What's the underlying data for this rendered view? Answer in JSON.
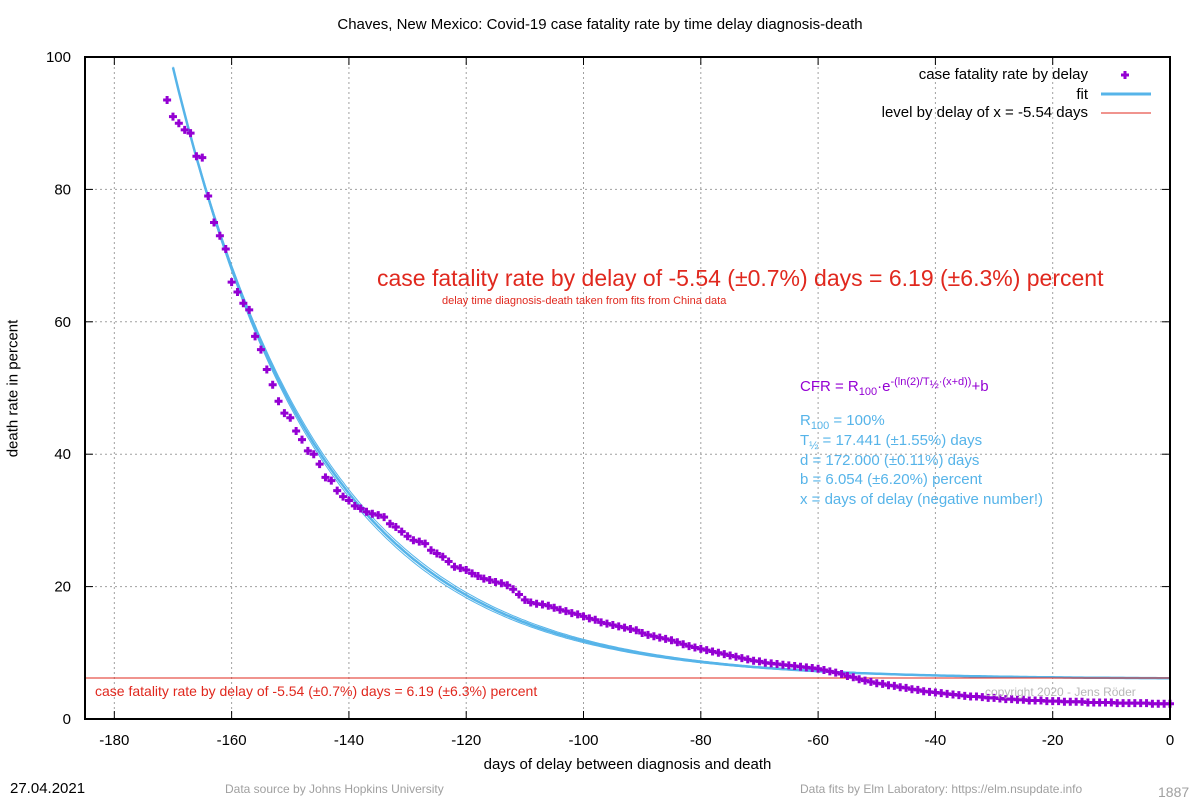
{
  "page": {
    "title": "Chaves,  New Mexico: Covid-19 case fatality rate by time delay diagnosis-death",
    "date": "27.04.2021",
    "data_source": "Data source by Johns Hopkins University",
    "data_fits": "Data fits by Elm Laboratory: https://elm.nsupdate.info",
    "image_number": "1887",
    "copyright": "copyright 2020 - Jens Röder"
  },
  "legend": {
    "points": "case fatality rate by delay",
    "fit": "fit",
    "level": "level by delay of x = -5.54 days"
  },
  "annotations": {
    "main": "case fatality rate by delay of -5.54 (±0.7%) days = 6.19 (±6.3%) percent",
    "sub": "delay time diagnosis-death taken from fits from China data",
    "level_label": "case fatality rate by delay of -5.54 (±0.7%) days = 6.19 (±6.3%) percent"
  },
  "formula": {
    "lhs": "CFR = R",
    "r_sub": "100",
    "dot_e": "·e",
    "exp_a": "-(ln(2)/T",
    "exp_half": "½",
    "exp_b": "·(x+d))",
    "tail": "+b"
  },
  "params": {
    "r100_a": "R",
    "r100_sub": "100",
    "r100_b": " = 100%",
    "t_a": "T",
    "t_sub": "½",
    "t_b": " = 17.441 (±1.55%) days",
    "d": "d = 172.000 (±0.11%) days",
    "b": "b = 6.054 (±6.20%) percent",
    "x": "x = days of delay (negative number!)"
  },
  "colors": {
    "points": "#9400d3",
    "fit": "#56b4e9",
    "level": "#e0281e",
    "grid": "#a0a0a0"
  },
  "chart_data": {
    "type": "scatter",
    "title": "Chaves,  New Mexico: Covid-19 case fatality rate by time delay diagnosis-death",
    "xlabel": "days of delay between diagnosis and death",
    "ylabel": "death rate in percent",
    "xlim": [
      -185,
      0
    ],
    "ylim": [
      0,
      100
    ],
    "x_ticks": [
      -180,
      -160,
      -140,
      -120,
      -100,
      -80,
      -60,
      -40,
      -20,
      0
    ],
    "y_ticks": [
      0,
      20,
      40,
      60,
      80,
      100
    ],
    "grid": true,
    "legend_position": "top-right",
    "fit": {
      "R100": 100,
      "T_half": 17.441,
      "d": 172.0,
      "b": 6.054,
      "T_half_band_pct": 1.55
    },
    "level": {
      "x": -5.54,
      "y": 6.19
    },
    "series": [
      {
        "name": "case fatality rate by delay",
        "points": [
          [
            -171,
            93.5
          ],
          [
            -170,
            91.0
          ],
          [
            -169,
            90.0
          ],
          [
            -168,
            89.0
          ],
          [
            -167,
            88.5
          ],
          [
            -166,
            85.0
          ],
          [
            -165,
            84.8
          ],
          [
            -164,
            79.0
          ],
          [
            -163,
            75.0
          ],
          [
            -162,
            73.0
          ],
          [
            -161,
            71.0
          ],
          [
            -160,
            66.0
          ],
          [
            -159,
            64.5
          ],
          [
            -158,
            62.8
          ],
          [
            -157,
            61.8
          ],
          [
            -156,
            57.8
          ],
          [
            -155,
            55.8
          ],
          [
            -154,
            52.8
          ],
          [
            -153,
            50.5
          ],
          [
            -152,
            48.0
          ],
          [
            -151,
            46.2
          ],
          [
            -150,
            45.5
          ],
          [
            -149,
            43.5
          ],
          [
            -148,
            42.2
          ],
          [
            -147,
            40.5
          ],
          [
            -146,
            40.0
          ],
          [
            -145,
            38.5
          ],
          [
            -144,
            36.5
          ],
          [
            -143,
            36.0
          ],
          [
            -142,
            34.5
          ],
          [
            -141,
            33.6
          ],
          [
            -140,
            33.0
          ],
          [
            -139,
            32.2
          ],
          [
            -138,
            31.8
          ],
          [
            -137,
            31.3
          ],
          [
            -136,
            31.0
          ],
          [
            -135,
            30.8
          ],
          [
            -134,
            30.5
          ],
          [
            -133,
            29.5
          ],
          [
            -132,
            29.0
          ],
          [
            -131,
            28.3
          ],
          [
            -130,
            27.6
          ],
          [
            -129,
            27.0
          ],
          [
            -128,
            26.8
          ],
          [
            -127,
            26.5
          ],
          [
            -126,
            25.5
          ],
          [
            -125,
            25.0
          ],
          [
            -124,
            24.5
          ],
          [
            -123,
            23.8
          ],
          [
            -122,
            23.0
          ],
          [
            -121,
            22.8
          ],
          [
            -120,
            22.5
          ],
          [
            -119,
            22.0
          ],
          [
            -118,
            21.6
          ],
          [
            -117,
            21.2
          ],
          [
            -116,
            21.0
          ],
          [
            -115,
            20.7
          ],
          [
            -114,
            20.5
          ],
          [
            -113,
            20.2
          ],
          [
            -112,
            19.6
          ],
          [
            -111,
            18.8
          ],
          [
            -110,
            18.0
          ],
          [
            -109,
            17.6
          ],
          [
            -108,
            17.4
          ],
          [
            -107,
            17.3
          ],
          [
            -106,
            17.1
          ],
          [
            -105,
            16.8
          ],
          [
            -104,
            16.5
          ],
          [
            -103,
            16.3
          ],
          [
            -102,
            16.0
          ],
          [
            -101,
            15.8
          ],
          [
            -100,
            15.5
          ],
          [
            -99,
            15.2
          ],
          [
            -98,
            15.0
          ],
          [
            -97,
            14.6
          ],
          [
            -96,
            14.4
          ],
          [
            -95,
            14.2
          ],
          [
            -94,
            14.0
          ],
          [
            -93,
            13.8
          ],
          [
            -92,
            13.6
          ],
          [
            -91,
            13.4
          ],
          [
            -90,
            13.0
          ],
          [
            -89,
            12.7
          ],
          [
            -88,
            12.5
          ],
          [
            -87,
            12.3
          ],
          [
            -86,
            12.1
          ],
          [
            -85,
            11.9
          ],
          [
            -84,
            11.6
          ],
          [
            -83,
            11.3
          ],
          [
            -82,
            11.0
          ],
          [
            -81,
            10.8
          ],
          [
            -80,
            10.6
          ],
          [
            -79,
            10.4
          ],
          [
            -78,
            10.2
          ],
          [
            -77,
            10.0
          ],
          [
            -76,
            9.8
          ],
          [
            -75,
            9.6
          ],
          [
            -74,
            9.4
          ],
          [
            -73,
            9.2
          ],
          [
            -72,
            9.0
          ],
          [
            -71,
            8.8
          ],
          [
            -70,
            8.7
          ],
          [
            -69,
            8.5
          ],
          [
            -68,
            8.4
          ],
          [
            -67,
            8.3
          ],
          [
            -66,
            8.2
          ],
          [
            -65,
            8.1
          ],
          [
            -64,
            8.0
          ],
          [
            -63,
            7.9
          ],
          [
            -62,
            7.8
          ],
          [
            -61,
            7.7
          ],
          [
            -60,
            7.6
          ],
          [
            -59,
            7.4
          ],
          [
            -58,
            7.2
          ],
          [
            -57,
            7.0
          ],
          [
            -56,
            6.8
          ],
          [
            -55,
            6.5
          ],
          [
            -54,
            6.3
          ],
          [
            -53,
            6.0
          ],
          [
            -52,
            5.8
          ],
          [
            -51,
            5.6
          ],
          [
            -50,
            5.4
          ],
          [
            -49,
            5.3
          ],
          [
            -48,
            5.1
          ],
          [
            -47,
            5.0
          ],
          [
            -46,
            4.8
          ],
          [
            -45,
            4.7
          ],
          [
            -44,
            4.5
          ],
          [
            -43,
            4.4
          ],
          [
            -42,
            4.2
          ],
          [
            -41,
            4.1
          ],
          [
            -40,
            4.0
          ],
          [
            -39,
            3.9
          ],
          [
            -38,
            3.8
          ],
          [
            -37,
            3.7
          ],
          [
            -36,
            3.6
          ],
          [
            -35,
            3.5
          ],
          [
            -34,
            3.4
          ],
          [
            -33,
            3.4
          ],
          [
            -32,
            3.3
          ],
          [
            -31,
            3.2
          ],
          [
            -30,
            3.2
          ],
          [
            -29,
            3.1
          ],
          [
            -28,
            3.0
          ],
          [
            -27,
            3.0
          ],
          [
            -26,
            2.9
          ],
          [
            -25,
            2.9
          ],
          [
            -24,
            2.8
          ],
          [
            -23,
            2.8
          ],
          [
            -22,
            2.8
          ],
          [
            -21,
            2.7
          ],
          [
            -20,
            2.7
          ],
          [
            -19,
            2.7
          ],
          [
            -18,
            2.6
          ],
          [
            -17,
            2.6
          ],
          [
            -16,
            2.6
          ],
          [
            -15,
            2.6
          ],
          [
            -14,
            2.5
          ],
          [
            -13,
            2.5
          ],
          [
            -12,
            2.5
          ],
          [
            -11,
            2.5
          ],
          [
            -10,
            2.5
          ],
          [
            -9,
            2.4
          ],
          [
            -8,
            2.4
          ],
          [
            -7,
            2.4
          ],
          [
            -6,
            2.4
          ],
          [
            -5,
            2.4
          ],
          [
            -4,
            2.4
          ],
          [
            -3,
            2.3
          ],
          [
            -2,
            2.3
          ],
          [
            -1,
            2.3
          ],
          [
            0,
            2.3
          ]
        ]
      }
    ]
  }
}
